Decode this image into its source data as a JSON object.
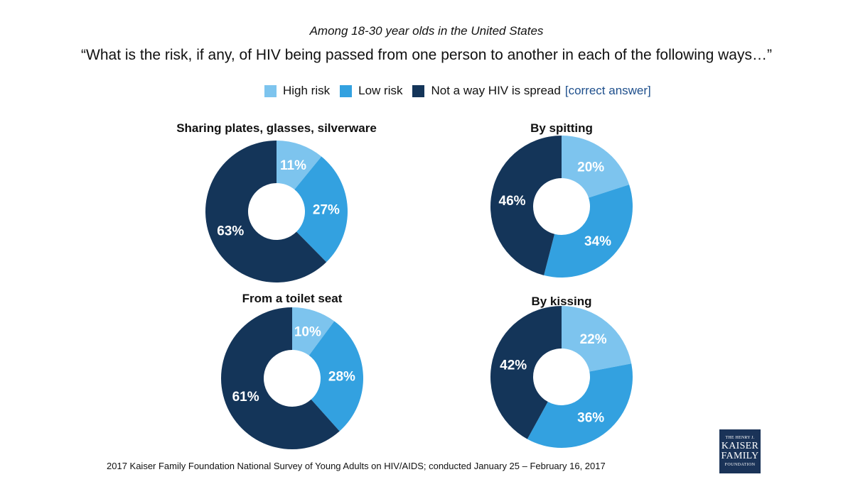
{
  "subtitle": "Among 18-30 year olds in the United States",
  "title": "“What is the risk, if any, of HIV being passed from one person to another in each of the following ways…”",
  "legend": {
    "items": [
      {
        "label": "High risk",
        "color": "#7dc4ee"
      },
      {
        "label": "Low risk",
        "color": "#33a1e0"
      },
      {
        "label": "Not a way HIV is spread",
        "color": "#143559"
      }
    ],
    "note": "[correct answer]"
  },
  "chart_data": [
    {
      "type": "pie",
      "title": "Sharing plates, glasses, silverware",
      "categories": [
        "High risk",
        "Low risk",
        "Not a way HIV is spread"
      ],
      "values": [
        11,
        27,
        63
      ],
      "labels": [
        "11%",
        "27%",
        "63%"
      ]
    },
    {
      "type": "pie",
      "title": "By spitting",
      "categories": [
        "High risk",
        "Low risk",
        "Not a way HIV is spread"
      ],
      "values": [
        20,
        34,
        46
      ],
      "labels": [
        "20%",
        "34%",
        "46%"
      ]
    },
    {
      "type": "pie",
      "title": "From a toilet seat",
      "categories": [
        "High risk",
        "Low risk",
        "Not a way HIV is spread"
      ],
      "values": [
        10,
        28,
        61
      ],
      "labels": [
        "10%",
        "28%",
        "61%"
      ]
    },
    {
      "type": "pie",
      "title": "By kissing",
      "categories": [
        "High risk",
        "Low risk",
        "Not a way HIV is spread"
      ],
      "values": [
        22,
        36,
        42
      ],
      "labels": [
        "22%",
        "36%",
        "42%"
      ]
    }
  ],
  "source": "2017 Kaiser Family Foundation National Survey of Young Adults on HIV/AIDS; conducted January 25 – February 16, 2017",
  "logo": {
    "line1": "THE HENRY J.",
    "line2": "KAISER",
    "line3": "FAMILY",
    "line4": "FOUNDATION"
  }
}
